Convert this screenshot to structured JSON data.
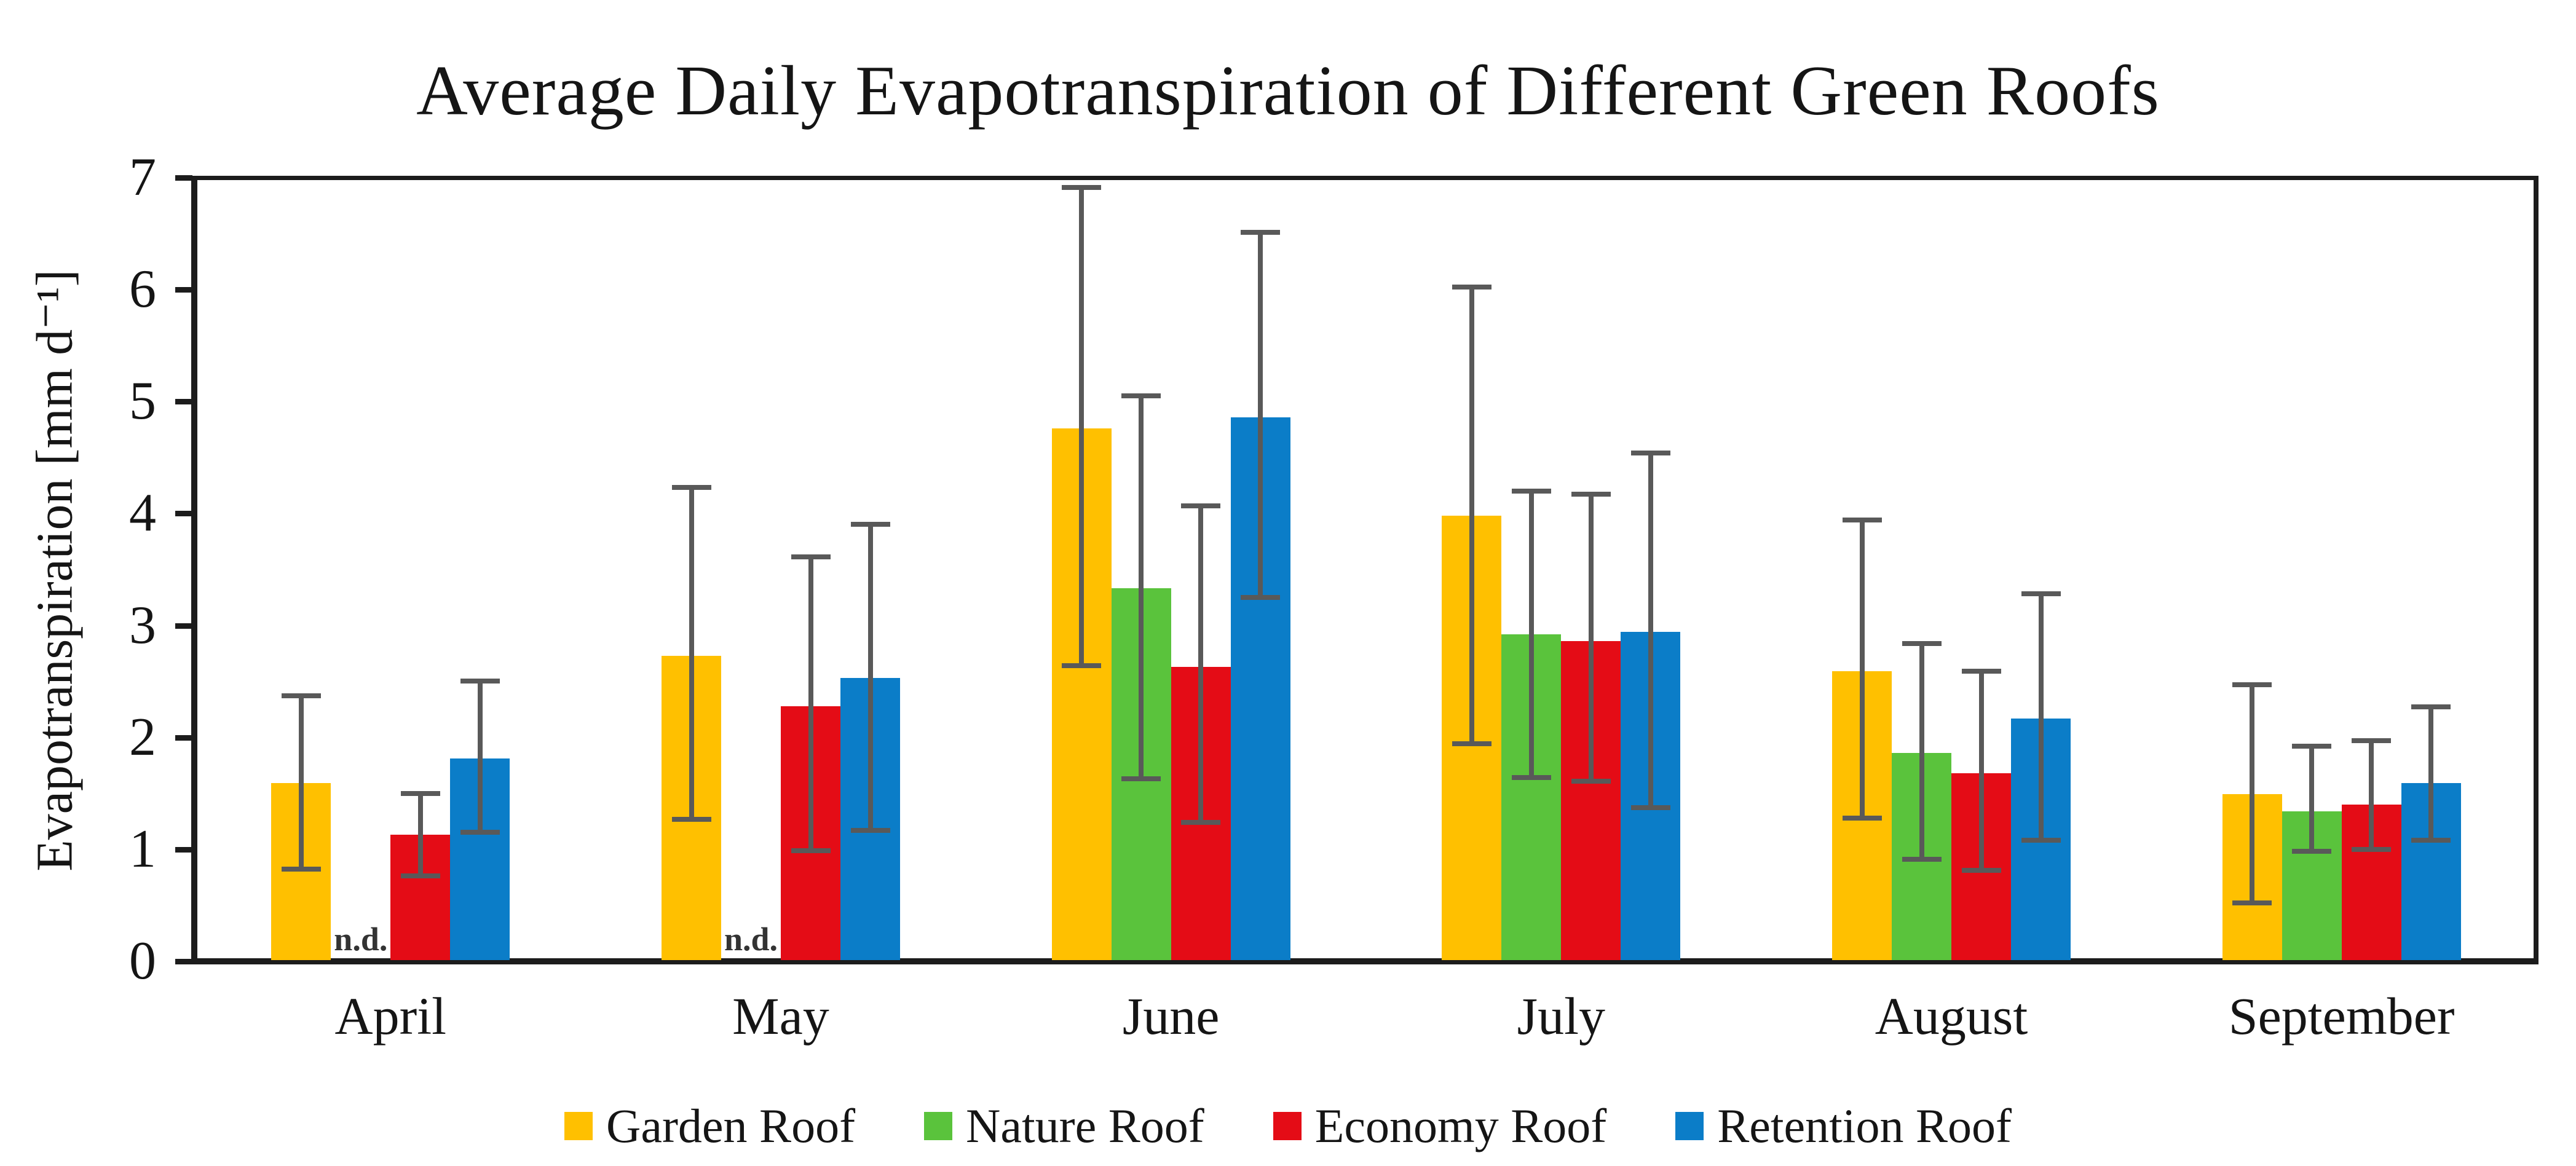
{
  "title": "Average Daily Evapotranspiration of Different Green Roofs",
  "chart_data": {
    "type": "bar",
    "title": "Average Daily Evapotranspiration of Different Green Roofs",
    "xlabel": "",
    "ylabel": "Evapotranspiration [mm d⁻¹]",
    "ylim": [
      0,
      7
    ],
    "yticks": [
      0,
      1,
      2,
      3,
      4,
      5,
      6,
      7
    ],
    "grid": false,
    "legend_position": "bottom",
    "frame": "full-box",
    "missing_value_label": "n.d.",
    "error_bar_color": "#595959",
    "axis_color": "#1c1c1c",
    "categories": [
      "April",
      "May",
      "June",
      "July",
      "August",
      "September"
    ],
    "series": [
      {
        "name": "Garden Roof",
        "color": "#FFC000",
        "values": [
          1.58,
          2.72,
          4.75,
          3.97,
          2.58,
          1.48
        ],
        "error_low": [
          0.81,
          1.26,
          2.63,
          1.93,
          1.27,
          0.51
        ],
        "error_high": [
          2.36,
          4.22,
          6.9,
          6.01,
          3.93,
          2.46
        ]
      },
      {
        "name": "Nature Roof",
        "color": "#5AC33C",
        "missing_label": "n.d.",
        "values": [
          null,
          null,
          3.32,
          2.91,
          1.85,
          1.33
        ],
        "error_low": [
          null,
          null,
          1.62,
          1.63,
          0.9,
          0.97
        ],
        "error_high": [
          null,
          null,
          5.04,
          4.19,
          2.83,
          1.91
        ]
      },
      {
        "name": "Economy Roof",
        "color": "#E40C16",
        "values": [
          1.12,
          2.27,
          2.62,
          2.85,
          1.67,
          1.39
        ],
        "error_low": [
          0.75,
          0.98,
          1.23,
          1.6,
          0.8,
          0.99
        ],
        "error_high": [
          1.49,
          3.6,
          4.06,
          4.16,
          2.58,
          1.96
        ]
      },
      {
        "name": "Retention Roof",
        "color": "#0B7DC8",
        "values": [
          1.8,
          2.52,
          4.85,
          2.93,
          2.16,
          1.58
        ],
        "error_low": [
          1.14,
          1.16,
          3.24,
          1.36,
          1.07,
          1.07
        ],
        "error_high": [
          2.49,
          3.89,
          6.5,
          4.53,
          3.27,
          2.26
        ]
      }
    ]
  }
}
